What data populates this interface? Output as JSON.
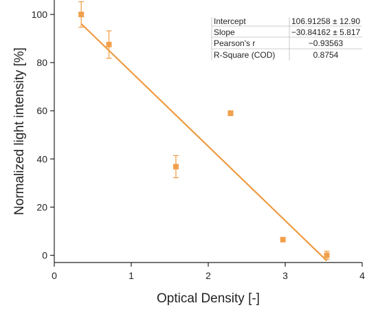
{
  "chart_data": {
    "type": "scatter",
    "xlabel": "Optical Density [-]",
    "ylabel": "Normalized light intensity [%]",
    "xlim": [
      0,
      4
    ],
    "ylim": [
      -3,
      106
    ],
    "x_ticks": [
      0,
      1,
      2,
      3,
      4
    ],
    "y_ticks": [
      0,
      20,
      40,
      60,
      80,
      100
    ],
    "grid": false,
    "series": [
      {
        "points": [
          {
            "x": 0.35,
            "y": 100.0,
            "err": 5.3
          },
          {
            "x": 0.71,
            "y": 87.5,
            "err": 5.7
          },
          {
            "x": 1.58,
            "y": 36.8,
            "err": 4.6
          },
          {
            "x": 2.29,
            "y": 59.0,
            "err": 1.0
          },
          {
            "x": 2.97,
            "y": 6.5,
            "err": 0.0
          },
          {
            "x": 3.54,
            "y": 0.0,
            "err": 1.7
          }
        ]
      }
    ],
    "fit": {
      "type": "linear",
      "intercept": 106.91258,
      "slope": -30.84162,
      "x_range": [
        0.35,
        3.54
      ]
    },
    "stats_table": {
      "rows": [
        {
          "label": "Intercept",
          "value": "106.91258 ± 12.90"
        },
        {
          "label": "Slope",
          "value": "−30.84162 ± 5.817"
        },
        {
          "label": "Pearson's r",
          "value": "−0.93563"
        },
        {
          "label": "R-Square (COD)",
          "value": "0.8754"
        }
      ]
    },
    "colors": {
      "marker": "#f0a04b",
      "fit_line": "#ee9a3f",
      "axis": "#222222",
      "table_lines": "#bbbbbb"
    }
  }
}
